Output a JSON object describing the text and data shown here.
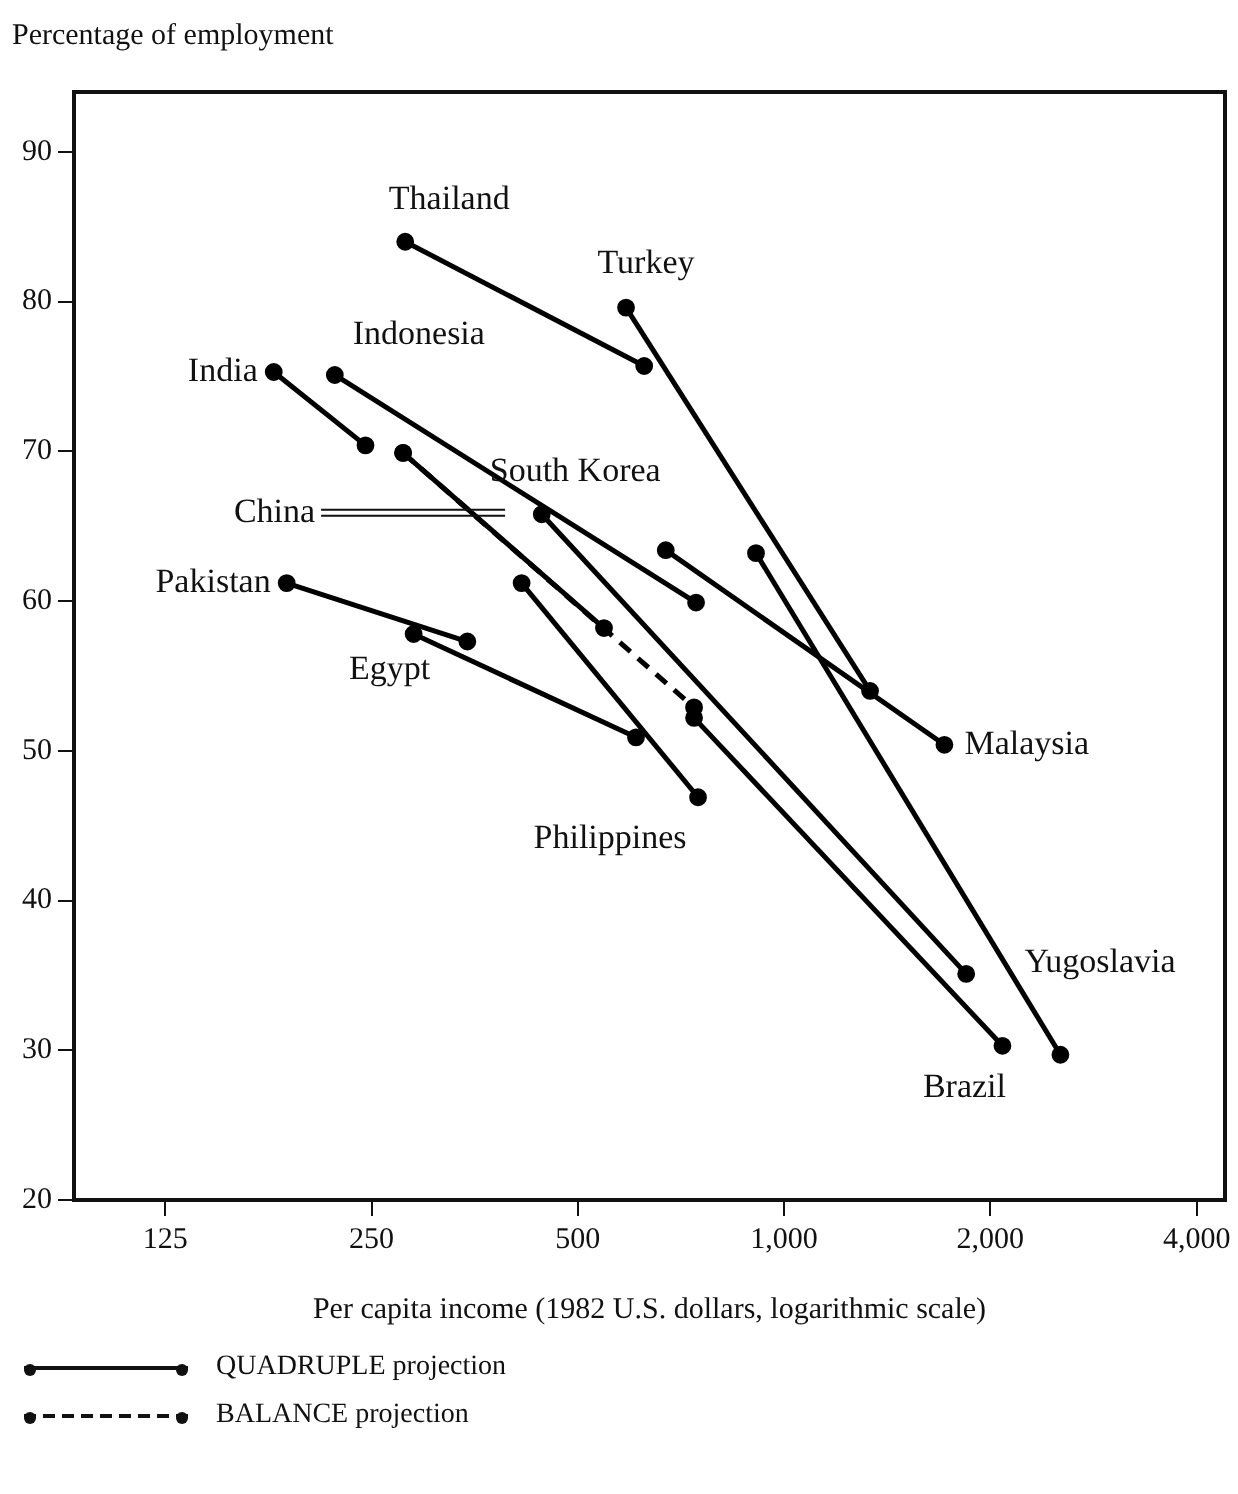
{
  "chart_data": {
    "type": "line",
    "ylabel": "Percentage of employment",
    "xlabel": "Per capita income (1982 U.S. dollars, logarithmic scale)",
    "log": "x",
    "xlim": [
      92,
      4400
    ],
    "xticks": [
      125,
      250,
      500,
      {
        "value": 1000,
        "label": "1,000"
      },
      {
        "value": 2000,
        "label": "2,000"
      },
      {
        "value": 4000,
        "label": "4,000"
      }
    ],
    "ylim": [
      20,
      94
    ],
    "yticks": [
      20,
      30,
      40,
      50,
      60,
      70,
      80,
      90
    ],
    "grid": false,
    "marker": "circle",
    "annotations": [
      "QUADRUPLE projection",
      "BALANCE projection"
    ],
    "series": [
      {
        "name": "Thailand",
        "color": "#000000",
        "line_style": "solid",
        "x": [
          280,
          625
        ],
        "values": [
          84,
          75.7
        ]
      },
      {
        "name": "Turkey",
        "color": "#000000",
        "line_style": "solid",
        "x": [
          588,
          1335
        ],
        "values": [
          79.6,
          54
        ]
      },
      {
        "name": "India",
        "color": "#000000",
        "line_style": "solid",
        "x": [
          180,
          245
        ],
        "values": [
          75.3,
          70.4
        ]
      },
      {
        "name": "Indonesia",
        "color": "#000000",
        "line_style": "solid",
        "x": [
          221,
          744
        ],
        "values": [
          75.1,
          59.9
        ]
      },
      {
        "name": "China",
        "color": "#000000",
        "line_style": "solid",
        "x": [
          278,
          546
        ],
        "values": [
          69.9,
          58.2
        ]
      },
      {
        "color": "#000000",
        "line_style": "dashed",
        "x": [
          278,
          739
        ],
        "values": [
          69.9,
          52.9
        ]
      },
      {
        "name": "South Korea",
        "color": "#000000",
        "line_style": "solid",
        "x": [
          443,
          1844
        ],
        "values": [
          65.8,
          35.1
        ]
      },
      {
        "name": "Pakistan",
        "color": "#000000",
        "line_style": "solid",
        "x": [
          188,
          345
        ],
        "values": [
          61.2,
          57.3
        ]
      },
      {
        "name": "Egypt",
        "color": "#000000",
        "line_style": "solid",
        "x": [
          288,
          608
        ],
        "values": [
          57.8,
          50.9
        ]
      },
      {
        "name": "Philippines",
        "color": "#000000",
        "line_style": "solid",
        "x": [
          414,
          749
        ],
        "values": [
          61.2,
          46.9
        ]
      },
      {
        "name": "Malaysia",
        "color": "#000000",
        "line_style": "solid",
        "x": [
          672,
          1714
        ],
        "values": [
          63.4,
          50.4
        ]
      },
      {
        "name": "Yugoslavia",
        "color": "#000000",
        "line_style": "solid",
        "x": [
          910,
          2531
        ],
        "values": [
          63.2,
          29.7
        ]
      },
      {
        "name": "Brazil",
        "color": "#000000",
        "line_style": "solid",
        "x": [
          739,
          2083
        ],
        "values": [
          52.2,
          30.3
        ]
      }
    ]
  }
}
